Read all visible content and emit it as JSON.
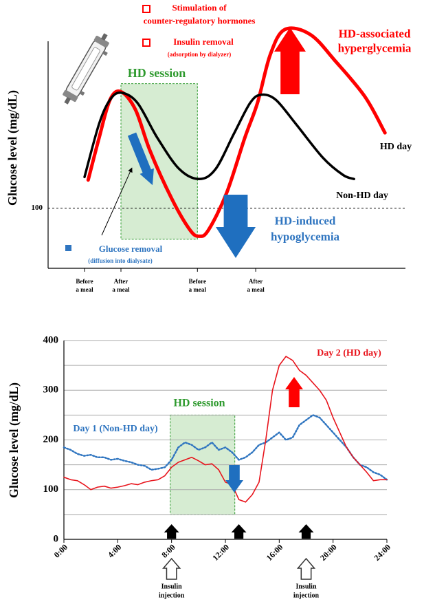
{
  "chart_data": [
    {
      "type": "line",
      "y_label": "Glucose level (mg/dL)",
      "xlim": [
        0,
        10
      ],
      "ylim": [
        40,
        280
      ],
      "yticks": [
        100
      ],
      "grid": "dashed",
      "xticks": [
        {
          "value": 1,
          "label": "Before\na meal"
        },
        {
          "value": 2,
          "label": "After\na meal"
        },
        {
          "value": 4.1,
          "label": "Before\na meal"
        },
        {
          "value": 5.7,
          "label": "After\na meal"
        }
      ],
      "series": [
        {
          "name": "HD day",
          "color": "#ff0000",
          "x": [
            1.1,
            1.4,
            1.7,
            2.0,
            2.4,
            2.8,
            3.4,
            3.9,
            4.15,
            4.4,
            4.9,
            5.4,
            5.75,
            6.1,
            6.5,
            7.2,
            7.9,
            8.7,
            9.25
          ],
          "values": [
            128,
            170,
            208,
            216,
            198,
            157,
            109,
            78,
            72,
            78,
            115,
            170,
            205,
            253,
            278,
            273,
            246,
            211,
            175
          ]
        },
        {
          "name": "Non-HD day",
          "color": "#000000",
          "x": [
            1.0,
            1.4,
            1.7,
            2.0,
            2.45,
            3.0,
            3.6,
            4.15,
            4.6,
            5.1,
            5.55,
            5.85,
            6.25,
            6.8,
            7.55,
            8.1,
            8.4
          ],
          "values": [
            131,
            184,
            208,
            215,
            205,
            170,
            139,
            129,
            139,
            174,
            205,
            213,
            208,
            184,
            150,
            133,
            129
          ]
        }
      ],
      "session": {
        "label": "HD session",
        "x": [
          2.0,
          4.1
        ],
        "y": [
          69,
          224
        ],
        "color": "#2e9a2e"
      },
      "annotations": {
        "stimulation": "Stimulation of\ncounter-regulatory hormones",
        "insulin_removal": "Insulin removal",
        "adsorption": "(adsorption by dialyzer)",
        "hyperglycemia": "HD-associated\nhyperglycemia",
        "hypoglycemia": "HD-induced\nhypoglycemia",
        "glucose_removal": "Glucose removal",
        "diffusion": "(diffusion into dialysate)"
      }
    },
    {
      "type": "line",
      "y_label": "Glucose level (mg/dL)",
      "xlim": [
        0,
        24
      ],
      "ylim": [
        0,
        400
      ],
      "yticks": [
        0,
        100,
        200,
        300,
        400
      ],
      "minor_grid": [
        50,
        150,
        250,
        350
      ],
      "grid": "solid",
      "xticks": [
        {
          "value": 0,
          "label": "0:00"
        },
        {
          "value": 4,
          "label": "4:00"
        },
        {
          "value": 8,
          "label": "8:00"
        },
        {
          "value": 12,
          "label": "12:00"
        },
        {
          "value": 16,
          "label": "16:00"
        },
        {
          "value": 20,
          "label": "20:00"
        },
        {
          "value": 24,
          "label": "24:00"
        }
      ],
      "x": [
        0,
        0.5,
        1,
        1.5,
        2,
        2.5,
        3,
        3.5,
        4,
        4.5,
        5,
        5.5,
        6,
        6.5,
        7,
        7.5,
        8,
        8.5,
        9,
        9.5,
        10,
        10.5,
        11,
        11.5,
        12,
        12.5,
        13,
        13.5,
        14,
        14.5,
        15,
        15.5,
        16,
        16.5,
        17,
        17.5,
        18,
        18.5,
        19,
        19.5,
        20,
        20.5,
        21,
        21.5,
        22,
        22.5,
        23,
        23.5,
        24
      ],
      "series": [
        {
          "name": "Day 1 (Non-HD day)",
          "color": "#2f75c0",
          "style": "dotted",
          "values": [
            185,
            180,
            172,
            168,
            170,
            165,
            165,
            160,
            162,
            158,
            155,
            150,
            148,
            140,
            142,
            145,
            160,
            185,
            195,
            190,
            180,
            185,
            195,
            180,
            185,
            175,
            160,
            165,
            175,
            190,
            195,
            205,
            215,
            200,
            205,
            230,
            240,
            250,
            245,
            230,
            215,
            200,
            185,
            165,
            150,
            145,
            135,
            130,
            120
          ]
        },
        {
          "name": "Day 2 (HD day)",
          "color": "#e8141c",
          "style": "solid",
          "values": [
            125,
            120,
            118,
            110,
            100,
            105,
            107,
            103,
            105,
            108,
            112,
            110,
            115,
            118,
            120,
            128,
            145,
            155,
            160,
            165,
            158,
            150,
            152,
            140,
            115,
            110,
            80,
            75,
            90,
            115,
            200,
            300,
            350,
            368,
            360,
            340,
            330,
            315,
            300,
            280,
            245,
            215,
            185,
            165,
            150,
            135,
            118,
            120,
            120
          ]
        }
      ],
      "session": {
        "label": "HD session",
        "x": [
          7.9,
          12.7
        ],
        "y": [
          50,
          250
        ],
        "color": "#2e9a2e"
      },
      "meal_arrows": [
        8,
        13,
        18
      ],
      "injections": {
        "label": "Insulin\ninjection",
        "x": [
          8,
          18
        ]
      }
    }
  ]
}
